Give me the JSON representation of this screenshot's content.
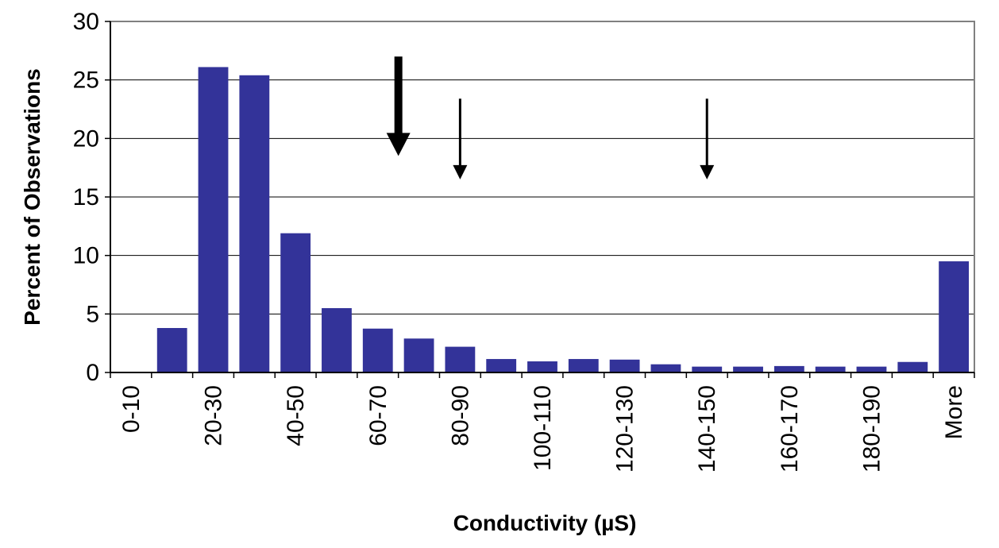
{
  "chart_data": {
    "type": "bar",
    "title": "",
    "xlabel": "Conductivity (µS)",
    "ylabel": "Percent of Observations",
    "ylim": [
      0,
      30
    ],
    "yticks": [
      0,
      5,
      10,
      15,
      20,
      25,
      30
    ],
    "grid": true,
    "bar_color": "#333399",
    "categories": [
      "0-10",
      "10-20",
      "20-30",
      "30-40",
      "40-50",
      "50-60",
      "60-70",
      "70-80",
      "80-90",
      "90-100",
      "100-110",
      "110-120",
      "120-130",
      "130-140",
      "140-150",
      "150-160",
      "160-170",
      "170-180",
      "180-190",
      "190-200",
      "More"
    ],
    "category_labels_shown": [
      "0-10",
      "20-30",
      "40-50",
      "60-70",
      "80-90",
      "100-110",
      "120-130",
      "140-150",
      "160-170",
      "180-190",
      "More"
    ],
    "values": [
      0,
      3.8,
      26.1,
      25.4,
      11.9,
      5.5,
      3.75,
      2.9,
      2.2,
      1.15,
      0.95,
      1.15,
      1.1,
      0.7,
      0.5,
      0.5,
      0.55,
      0.5,
      0.5,
      0.9,
      9.5
    ],
    "annotations": [
      {
        "type": "arrow",
        "style": "thick",
        "category": "70-80",
        "points_to": 18.5
      },
      {
        "type": "arrow",
        "style": "thin",
        "category": "80-90",
        "points_to": 16.5
      },
      {
        "type": "arrow",
        "style": "thin",
        "category": "140-150",
        "points_to": 16.5
      }
    ]
  }
}
